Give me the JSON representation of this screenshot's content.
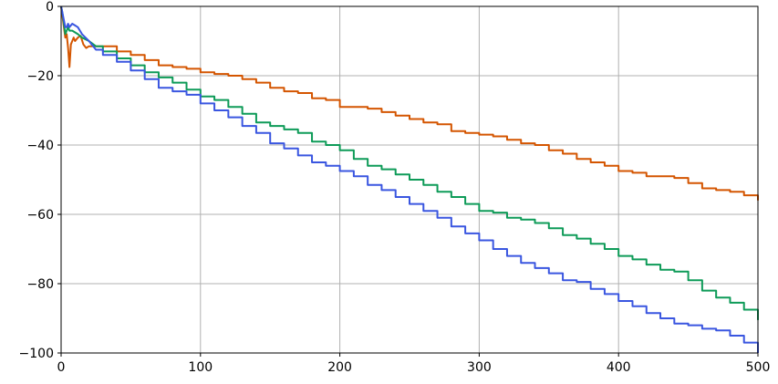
{
  "chart_data": {
    "type": "line",
    "title": "",
    "xlabel": "",
    "ylabel": "",
    "xlim": [
      0,
      500
    ],
    "ylim": [
      -100,
      0
    ],
    "grid": true,
    "legend": "none",
    "x_ticks": [
      "0",
      "100",
      "200",
      "300",
      "400",
      "500"
    ],
    "y_ticks": [
      "0",
      "−20",
      "−40",
      "−60",
      "−80",
      "−100"
    ],
    "series": [
      {
        "color": "#d45500",
        "x": [
          0,
          1,
          2,
          3,
          4,
          5,
          6,
          7,
          8,
          9,
          10,
          12,
          14,
          16,
          18,
          20,
          25,
          30,
          40,
          50,
          60,
          70,
          80,
          90,
          100,
          110,
          120,
          130,
          140,
          150,
          160,
          170,
          180,
          190,
          200,
          210,
          220,
          230,
          240,
          250,
          260,
          270,
          280,
          290,
          300,
          310,
          320,
          330,
          340,
          350,
          360,
          370,
          380,
          390,
          400,
          410,
          420,
          430,
          440,
          450,
          460,
          470,
          480,
          490,
          500
        ],
        "y": [
          0,
          -3,
          -6,
          -9,
          -8,
          -12,
          -17.5,
          -11,
          -10,
          -9,
          -10,
          -9,
          -8.5,
          -11,
          -12,
          -11.5,
          -11.5,
          -11.5,
          -13,
          -14,
          -15.5,
          -17,
          -17.5,
          -18,
          -19,
          -19.5,
          -20,
          -21,
          -22,
          -23.5,
          -24.5,
          -25,
          -26.5,
          -27,
          -29,
          -29,
          -29.5,
          -30.5,
          -31.5,
          -32.5,
          -33.5,
          -34,
          -36,
          -36.5,
          -37,
          -37.5,
          -38.5,
          -39.5,
          -40,
          -41.5,
          -42.5,
          -44,
          -45,
          -46,
          -47.5,
          -48,
          -49,
          -49,
          -49.5,
          -51,
          -52.5,
          -53,
          -53.5,
          -54.5,
          -56
        ]
      },
      {
        "color": "#0e9b58",
        "x": [
          0,
          1,
          2,
          3,
          4,
          5,
          6,
          8,
          10,
          12,
          15,
          20,
          25,
          30,
          40,
          50,
          60,
          70,
          80,
          90,
          100,
          110,
          120,
          130,
          140,
          150,
          160,
          170,
          180,
          190,
          200,
          210,
          220,
          230,
          240,
          250,
          260,
          270,
          280,
          290,
          300,
          310,
          320,
          330,
          340,
          350,
          360,
          370,
          380,
          390,
          400,
          410,
          420,
          430,
          440,
          450,
          460,
          470,
          480,
          490,
          500
        ],
        "y": [
          0,
          -2,
          -5,
          -8,
          -7,
          -6,
          -7,
          -7,
          -7.5,
          -8,
          -9,
          -10,
          -11.5,
          -13,
          -15,
          -17,
          -19,
          -20.5,
          -22,
          -24,
          -26,
          -27,
          -29,
          -31,
          -33.5,
          -34.5,
          -35.5,
          -36.5,
          -39,
          -40,
          -41.5,
          -44,
          -46,
          -47,
          -48.5,
          -50,
          -51.5,
          -53.5,
          -55,
          -57,
          -59,
          -59.5,
          -61,
          -61.5,
          -62.5,
          -64,
          -66,
          -67,
          -68.5,
          -70,
          -72,
          -73,
          -74.5,
          -76,
          -76.5,
          -79,
          -82,
          -84,
          -85.5,
          -87.5,
          -90.5
        ]
      },
      {
        "color": "#3a56e0",
        "x": [
          0,
          1,
          2,
          3,
          4,
          5,
          6,
          8,
          10,
          12,
          15,
          20,
          25,
          30,
          40,
          50,
          60,
          70,
          80,
          90,
          100,
          110,
          120,
          130,
          140,
          150,
          160,
          170,
          180,
          190,
          200,
          210,
          220,
          230,
          240,
          250,
          260,
          270,
          280,
          290,
          300,
          310,
          320,
          330,
          340,
          350,
          360,
          370,
          380,
          390,
          400,
          410,
          420,
          430,
          440,
          450,
          460,
          470,
          480,
          490,
          500
        ],
        "y": [
          0,
          -2,
          -4,
          -6,
          -6,
          -5,
          -6,
          -5,
          -5.5,
          -6,
          -8,
          -10,
          -12.5,
          -14,
          -16,
          -18.5,
          -21,
          -23.5,
          -24.5,
          -25.5,
          -28,
          -30,
          -32,
          -34.5,
          -36.5,
          -39.5,
          -41,
          -43,
          -45,
          -46,
          -47.5,
          -49,
          -51.5,
          -53,
          -55,
          -57,
          -59,
          -61,
          -63.5,
          -65.5,
          -67.5,
          -70,
          -72,
          -74,
          -75.5,
          -77,
          -79,
          -79.5,
          -81.5,
          -83,
          -85,
          -86.5,
          -88.5,
          -90,
          -91.5,
          -92,
          -93,
          -93.5,
          -95,
          -97,
          -100
        ]
      }
    ]
  }
}
